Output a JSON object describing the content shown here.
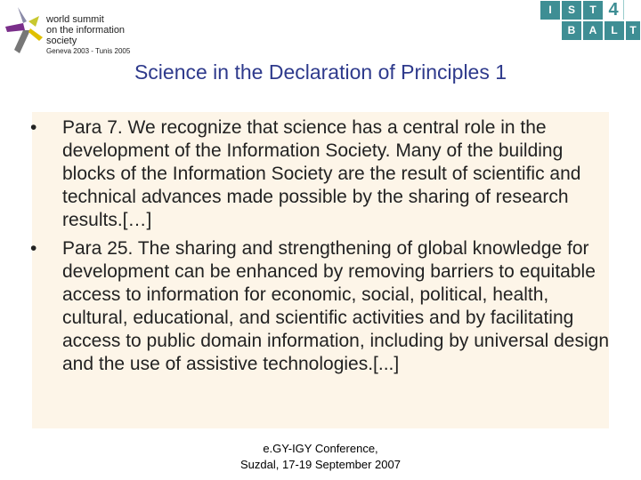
{
  "logo_left": {
    "line1": "world summit",
    "line2": "on the information society",
    "line3": "Geneva 2003 - Tunis 2005"
  },
  "logo_right": {
    "letters_top": [
      "I",
      "S",
      "T"
    ],
    "number": "4",
    "letters_bottom": [
      "B",
      "A",
      "L",
      "T"
    ],
    "color": "#3e8e94"
  },
  "title": "Science in the Declaration of Principles 1",
  "bullets": [
    "Para 7. We recognize that science has a central role in the development of the Information Society. Many of the building blocks of the Information Society are the result of scientific and technical advances made possible by the sharing of research results.[…]",
    "Para 25. The sharing and strengthening of global knowledge for development can be enhanced by removing barriers to equitable access to information for economic, social, political, health, cultural, educational, and scientific activities and by facilitating access to public domain information, including by universal design and the use of assistive technologies.[...]"
  ],
  "bullet_char": "•",
  "footer": {
    "line1": "e.GY-IGY Conference,",
    "line2": "Suzdal, 17-19 September 2007"
  }
}
